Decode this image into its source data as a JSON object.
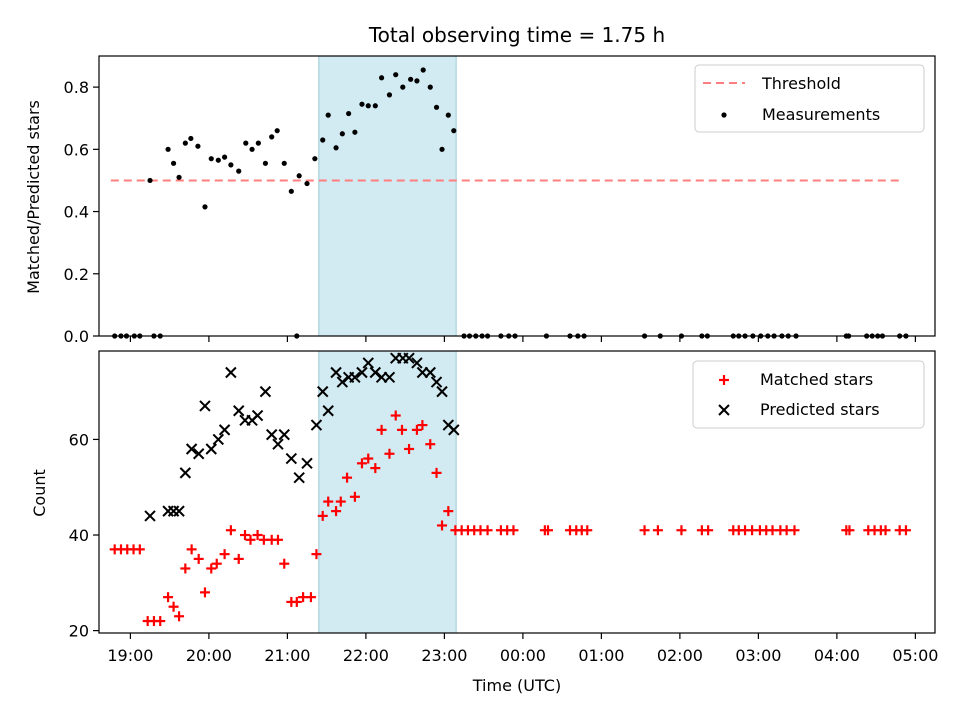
{
  "chart_data": [
    {
      "type": "scatter",
      "title": "Total observing time = 1.75 h",
      "ylabel": "Matched/Predicted stars",
      "xlabel": "",
      "ylim": [
        0,
        0.9
      ],
      "yticks": [
        0.0,
        0.2,
        0.4,
        0.6,
        0.8
      ],
      "ytick_labels": [
        "0.0",
        "0.2",
        "0.4",
        "0.6",
        "0.8"
      ],
      "xlim": [
        18.6,
        29.25
      ],
      "xticks_hours": [
        19,
        20,
        21,
        22,
        23,
        24,
        25,
        26,
        27,
        28,
        29
      ],
      "shaded_span": {
        "start": 21.4,
        "end": 23.15,
        "color": "#add8e6"
      },
      "legend_position": "top-right",
      "series": [
        {
          "name": "Threshold",
          "kind": "dashed-line",
          "color": "#ff7f7f",
          "x": [
            18.75,
            28.85
          ],
          "y": [
            0.5,
            0.5
          ]
        },
        {
          "name": "Measurements",
          "kind": "dots",
          "color": "#000000",
          "points": [
            [
              18.8,
              0
            ],
            [
              18.88,
              0
            ],
            [
              18.95,
              0
            ],
            [
              19.05,
              0
            ],
            [
              19.12,
              0
            ],
            [
              19.3,
              0
            ],
            [
              19.38,
              0
            ],
            [
              19.25,
              0.5
            ],
            [
              19.48,
              0.6
            ],
            [
              19.55,
              0.555
            ],
            [
              19.62,
              0.51
            ],
            [
              19.7,
              0.62
            ],
            [
              19.77,
              0.635
            ],
            [
              19.86,
              0.61
            ],
            [
              19.95,
              0.415
            ],
            [
              20.03,
              0.57
            ],
            [
              20.12,
              0.565
            ],
            [
              20.2,
              0.575
            ],
            [
              20.28,
              0.55
            ],
            [
              20.38,
              0.53
            ],
            [
              20.47,
              0.62
            ],
            [
              20.55,
              0.6
            ],
            [
              20.63,
              0.62
            ],
            [
              20.72,
              0.555
            ],
            [
              20.8,
              0.64
            ],
            [
              20.87,
              0.66
            ],
            [
              20.96,
              0.555
            ],
            [
              21.05,
              0.465
            ],
            [
              21.15,
              0.515
            ],
            [
              21.25,
              0.49
            ],
            [
              21.12,
              0
            ],
            [
              21.35,
              0.57
            ],
            [
              21.45,
              0.63
            ],
            [
              21.52,
              0.71
            ],
            [
              21.62,
              0.605
            ],
            [
              21.7,
              0.65
            ],
            [
              21.78,
              0.715
            ],
            [
              21.86,
              0.655
            ],
            [
              21.95,
              0.745
            ],
            [
              22.03,
              0.74
            ],
            [
              22.12,
              0.74
            ],
            [
              22.2,
              0.83
            ],
            [
              22.3,
              0.775
            ],
            [
              22.38,
              0.84
            ],
            [
              22.47,
              0.8
            ],
            [
              22.57,
              0.825
            ],
            [
              22.65,
              0.82
            ],
            [
              22.73,
              0.855
            ],
            [
              22.82,
              0.8
            ],
            [
              22.9,
              0.735
            ],
            [
              22.97,
              0.6
            ],
            [
              23.05,
              0.71
            ],
            [
              23.12,
              0.66
            ],
            [
              23.25,
              0
            ],
            [
              23.32,
              0
            ],
            [
              23.4,
              0
            ],
            [
              23.48,
              0
            ],
            [
              23.55,
              0
            ],
            [
              23.72,
              0
            ],
            [
              23.82,
              0
            ],
            [
              23.9,
              0
            ],
            [
              24.3,
              0
            ],
            [
              24.6,
              0
            ],
            [
              24.7,
              0
            ],
            [
              24.78,
              0
            ],
            [
              25.55,
              0
            ],
            [
              25.75,
              0
            ],
            [
              26.02,
              0
            ],
            [
              26.28,
              0
            ],
            [
              26.35,
              0
            ],
            [
              26.68,
              0
            ],
            [
              26.75,
              0
            ],
            [
              26.83,
              0
            ],
            [
              26.93,
              0
            ],
            [
              27.03,
              0
            ],
            [
              27.12,
              0
            ],
            [
              27.2,
              0
            ],
            [
              27.3,
              0
            ],
            [
              27.38,
              0
            ],
            [
              27.48,
              0
            ],
            [
              28.12,
              0
            ],
            [
              28.15,
              0
            ],
            [
              28.38,
              0
            ],
            [
              28.45,
              0
            ],
            [
              28.52,
              0
            ],
            [
              28.58,
              0
            ],
            [
              28.8,
              0
            ],
            [
              28.88,
              0
            ]
          ]
        }
      ]
    },
    {
      "type": "scatter",
      "title": "",
      "ylabel": "Count",
      "xlabel": "Time (UTC)",
      "ylim": [
        19.5,
        78.5
      ],
      "yticks": [
        20,
        40,
        60
      ],
      "ytick_labels": [
        "20",
        "40",
        "60"
      ],
      "xlim": [
        18.6,
        29.25
      ],
      "xticks_hours": [
        19,
        20,
        21,
        22,
        23,
        24,
        25,
        26,
        27,
        28,
        29
      ],
      "xtick_labels": [
        "19:00",
        "20:00",
        "21:00",
        "22:00",
        "23:00",
        "00:00",
        "01:00",
        "02:00",
        "03:00",
        "04:00",
        "05:00"
      ],
      "shaded_span": {
        "start": 21.4,
        "end": 23.15,
        "color": "#add8e6"
      },
      "legend_position": "top-right",
      "series": [
        {
          "name": "Matched stars",
          "kind": "plus",
          "color": "#ff0000",
          "points": [
            [
              18.8,
              37
            ],
            [
              18.88,
              37
            ],
            [
              18.96,
              37
            ],
            [
              19.04,
              37
            ],
            [
              19.12,
              37
            ],
            [
              19.22,
              22
            ],
            [
              19.3,
              22
            ],
            [
              19.38,
              22
            ],
            [
              19.48,
              27
            ],
            [
              19.55,
              25
            ],
            [
              19.62,
              23
            ],
            [
              19.7,
              33
            ],
            [
              19.78,
              37
            ],
            [
              19.87,
              35
            ],
            [
              19.95,
              28
            ],
            [
              20.03,
              33
            ],
            [
              20.1,
              34
            ],
            [
              20.2,
              36
            ],
            [
              20.28,
              41
            ],
            [
              20.38,
              35
            ],
            [
              20.46,
              40
            ],
            [
              20.53,
              39
            ],
            [
              20.62,
              40
            ],
            [
              20.7,
              39
            ],
            [
              20.8,
              39
            ],
            [
              20.88,
              39
            ],
            [
              20.96,
              34
            ],
            [
              21.05,
              26
            ],
            [
              21.12,
              26
            ],
            [
              21.2,
              27
            ],
            [
              21.3,
              27
            ],
            [
              21.37,
              36
            ],
            [
              21.45,
              44
            ],
            [
              21.52,
              47
            ],
            [
              21.62,
              45
            ],
            [
              21.68,
              47
            ],
            [
              21.76,
              52
            ],
            [
              21.86,
              48
            ],
            [
              21.95,
              55
            ],
            [
              22.03,
              56
            ],
            [
              22.12,
              54
            ],
            [
              22.2,
              62
            ],
            [
              22.3,
              57
            ],
            [
              22.38,
              65
            ],
            [
              22.46,
              62
            ],
            [
              22.55,
              58
            ],
            [
              22.65,
              62
            ],
            [
              22.72,
              63
            ],
            [
              22.82,
              59
            ],
            [
              22.9,
              53
            ],
            [
              22.97,
              42
            ],
            [
              23.05,
              45
            ],
            [
              23.14,
              41
            ],
            [
              23.22,
              41
            ],
            [
              23.3,
              41
            ],
            [
              23.38,
              41
            ],
            [
              23.46,
              41
            ],
            [
              23.55,
              41
            ],
            [
              23.72,
              41
            ],
            [
              23.8,
              41
            ],
            [
              23.88,
              41
            ],
            [
              24.28,
              41
            ],
            [
              24.32,
              41
            ],
            [
              24.6,
              41
            ],
            [
              24.68,
              41
            ],
            [
              24.75,
              41
            ],
            [
              24.82,
              41
            ],
            [
              25.55,
              41
            ],
            [
              25.72,
              41
            ],
            [
              26.02,
              41
            ],
            [
              26.28,
              41
            ],
            [
              26.36,
              41
            ],
            [
              26.68,
              41
            ],
            [
              26.75,
              41
            ],
            [
              26.83,
              41
            ],
            [
              26.92,
              41
            ],
            [
              27.02,
              41
            ],
            [
              27.1,
              41
            ],
            [
              27.18,
              41
            ],
            [
              27.28,
              41
            ],
            [
              27.36,
              41
            ],
            [
              27.46,
              41
            ],
            [
              28.12,
              41
            ],
            [
              28.16,
              41
            ],
            [
              28.4,
              41
            ],
            [
              28.48,
              41
            ],
            [
              28.56,
              41
            ],
            [
              28.62,
              41
            ],
            [
              28.8,
              41
            ],
            [
              28.88,
              41
            ]
          ]
        },
        {
          "name": "Predicted stars",
          "kind": "x",
          "color": "#000000",
          "points": [
            [
              19.25,
              44
            ],
            [
              19.48,
              45
            ],
            [
              19.55,
              45
            ],
            [
              19.62,
              45
            ],
            [
              19.7,
              53
            ],
            [
              19.78,
              58
            ],
            [
              19.87,
              57
            ],
            [
              19.95,
              67
            ],
            [
              20.03,
              58
            ],
            [
              20.12,
              60
            ],
            [
              20.2,
              62
            ],
            [
              20.28,
              74
            ],
            [
              20.38,
              66
            ],
            [
              20.46,
              64
            ],
            [
              20.55,
              64
            ],
            [
              20.62,
              65
            ],
            [
              20.72,
              70
            ],
            [
              20.8,
              61
            ],
            [
              20.88,
              59
            ],
            [
              20.96,
              61
            ],
            [
              21.05,
              56
            ],
            [
              21.15,
              52
            ],
            [
              21.25,
              55
            ],
            [
              21.37,
              63
            ],
            [
              21.45,
              70
            ],
            [
              21.52,
              66
            ],
            [
              21.62,
              74
            ],
            [
              21.7,
              72
            ],
            [
              21.78,
              73
            ],
            [
              21.86,
              73
            ],
            [
              21.95,
              74
            ],
            [
              22.03,
              76
            ],
            [
              22.12,
              74
            ],
            [
              22.2,
              73
            ],
            [
              22.3,
              73
            ],
            [
              22.38,
              77
            ],
            [
              22.47,
              77
            ],
            [
              22.55,
              77
            ],
            [
              22.65,
              76
            ],
            [
              22.72,
              74
            ],
            [
              22.82,
              74
            ],
            [
              22.9,
              72
            ],
            [
              22.97,
              70
            ],
            [
              23.05,
              63
            ],
            [
              23.12,
              62
            ]
          ]
        }
      ]
    }
  ]
}
